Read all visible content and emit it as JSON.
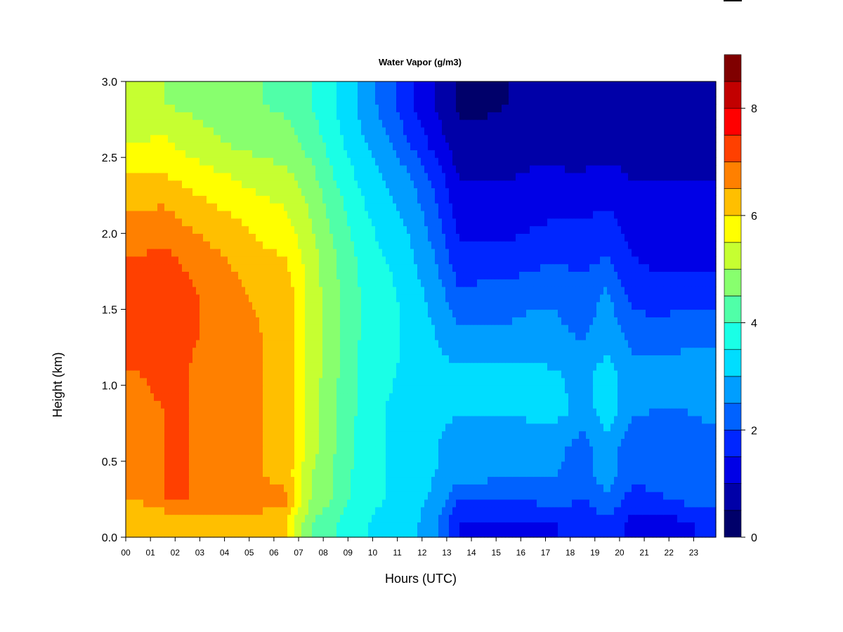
{
  "chart_data": {
    "type": "heatmap",
    "title": "Water Vapor (g/m3)",
    "xlabel": "Hours (UTC)",
    "ylabel": "Height (km)",
    "xlim": [
      0,
      23.9
    ],
    "ylim": [
      0,
      3
    ],
    "x_ticks": [
      "00",
      "01",
      "02",
      "03",
      "04",
      "05",
      "06",
      "07",
      "08",
      "09",
      "10",
      "11",
      "12",
      "13",
      "14",
      "15",
      "16",
      "17",
      "18",
      "19",
      "20",
      "21",
      "22",
      "23"
    ],
    "y_ticks": [
      "0.0",
      "0.5",
      "1.0",
      "1.5",
      "2.0",
      "2.5",
      "3.0"
    ],
    "heights": [
      0.1,
      0.25,
      0.4,
      0.6,
      0.85,
      1.1,
      1.35,
      1.6,
      1.85,
      2.1,
      2.35,
      2.6,
      2.85
    ],
    "hours": [
      0.5,
      1.5,
      2.5,
      3.5,
      4.5,
      5.5,
      6.5,
      7.5,
      8.5,
      9.5,
      10.5,
      11.5,
      12.5,
      13.5,
      14.5,
      15.5,
      16.5,
      17.5,
      18.5,
      19.5,
      20.5,
      21.5,
      22.5,
      23.5
    ],
    "values": [
      [
        6.0,
        6.0,
        6.2,
        6.0,
        6.0,
        6.0,
        6.0,
        4.5,
        4.0,
        3.6,
        3.3,
        3.2,
        2.6,
        1.5,
        1.4,
        1.4,
        1.4,
        1.5,
        1.5,
        1.9,
        1.3,
        1.3,
        1.4,
        1.6
      ],
      [
        6.5,
        7.0,
        7.0,
        7.0,
        7.0,
        7.0,
        6.6,
        5.0,
        4.4,
        3.7,
        3.5,
        3.3,
        2.9,
        2.0,
        2.1,
        2.1,
        2.1,
        2.2,
        2.0,
        2.4,
        1.8,
        1.9,
        2.1,
        2.2
      ],
      [
        6.6,
        7.0,
        7.0,
        6.8,
        6.6,
        6.5,
        6.3,
        5.0,
        4.4,
        3.8,
        3.5,
        3.3,
        3.0,
        2.7,
        2.6,
        2.5,
        2.5,
        2.5,
        2.3,
        2.7,
        2.1,
        2.2,
        2.2,
        2.3
      ],
      [
        6.8,
        7.0,
        7.0,
        6.8,
        6.6,
        6.5,
        6.4,
        5.2,
        4.5,
        3.8,
        3.5,
        3.3,
        3.1,
        2.6,
        2.6,
        2.6,
        2.6,
        2.6,
        2.3,
        2.8,
        2.2,
        2.2,
        2.3,
        2.3
      ],
      [
        6.8,
        7.0,
        7.0,
        6.8,
        6.7,
        6.5,
        6.4,
        5.2,
        4.5,
        3.9,
        3.5,
        3.3,
        3.1,
        3.1,
        3.1,
        3.1,
        3.2,
        3.2,
        2.8,
        3.3,
        2.6,
        2.5,
        2.5,
        2.6
      ],
      [
        7.0,
        7.2,
        7.0,
        6.8,
        6.7,
        6.5,
        6.4,
        5.3,
        4.6,
        3.9,
        3.6,
        3.4,
        3.1,
        3.1,
        3.1,
        3.1,
        3.1,
        3.0,
        2.8,
        3.2,
        2.7,
        2.6,
        2.6,
        2.6
      ],
      [
        7.2,
        7.3,
        7.1,
        6.9,
        6.7,
        6.5,
        6.4,
        5.3,
        4.6,
        4.0,
        3.7,
        3.4,
        3.0,
        2.6,
        2.6,
        2.6,
        2.7,
        2.6,
        2.4,
        2.8,
        2.3,
        2.3,
        2.4,
        2.4
      ],
      [
        7.2,
        7.4,
        7.1,
        6.9,
        6.6,
        6.4,
        6.3,
        5.3,
        4.6,
        4.0,
        3.7,
        3.3,
        2.8,
        2.1,
        2.2,
        2.2,
        2.4,
        2.4,
        2.2,
        2.6,
        1.8,
        1.6,
        1.7,
        1.6
      ],
      [
        7.0,
        7.1,
        6.9,
        6.6,
        6.4,
        6.1,
        6.0,
        5.2,
        4.5,
        3.9,
        3.5,
        3.1,
        2.5,
        1.6,
        1.6,
        1.6,
        1.8,
        1.9,
        1.8,
        2.0,
        1.5,
        1.4,
        1.4,
        1.4
      ],
      [
        6.6,
        6.7,
        6.4,
        6.2,
        6.0,
        5.8,
        5.6,
        5.0,
        4.3,
        3.7,
        3.2,
        2.9,
        2.2,
        1.3,
        1.3,
        1.3,
        1.4,
        1.5,
        1.5,
        1.6,
        1.3,
        1.2,
        1.2,
        1.2
      ],
      [
        6.1,
        6.1,
        5.9,
        5.7,
        5.5,
        5.3,
        5.2,
        4.7,
        4.0,
        3.4,
        3.0,
        2.6,
        1.9,
        1.0,
        1.0,
        1.0,
        1.1,
        1.1,
        1.1,
        1.2,
        1.0,
        1.0,
        1.0,
        1.0
      ],
      [
        5.5,
        5.6,
        5.3,
        5.1,
        4.9,
        4.8,
        4.7,
        4.3,
        3.7,
        3.1,
        2.6,
        2.0,
        1.3,
        0.7,
        0.7,
        0.8,
        0.8,
        0.8,
        0.7,
        0.8,
        0.8,
        0.7,
        0.7,
        0.7
      ],
      [
        5.0,
        5.0,
        4.9,
        4.8,
        4.6,
        4.5,
        4.4,
        4.0,
        3.5,
        2.9,
        2.3,
        1.6,
        1.0,
        0.4,
        0.4,
        0.5,
        0.5,
        0.6,
        0.6,
        0.6,
        0.5,
        0.5,
        0.5,
        0.5
      ]
    ],
    "colorbar": {
      "min": 0,
      "max": 8.5,
      "step": 0.5,
      "tick_labels": [
        "0",
        "2",
        "4",
        "6",
        "8"
      ],
      "colors": [
        "#00006a",
        "#0000a8",
        "#0000e6",
        "#0026ff",
        "#0062ff",
        "#009eff",
        "#00ddff",
        "#1affe6",
        "#50ffa8",
        "#88ff6e",
        "#c6ff31",
        "#ffff00",
        "#ffbf00",
        "#ff8000",
        "#ff4000",
        "#ff0000",
        "#c20000",
        "#800000"
      ]
    },
    "grid": false,
    "legend": "right"
  }
}
